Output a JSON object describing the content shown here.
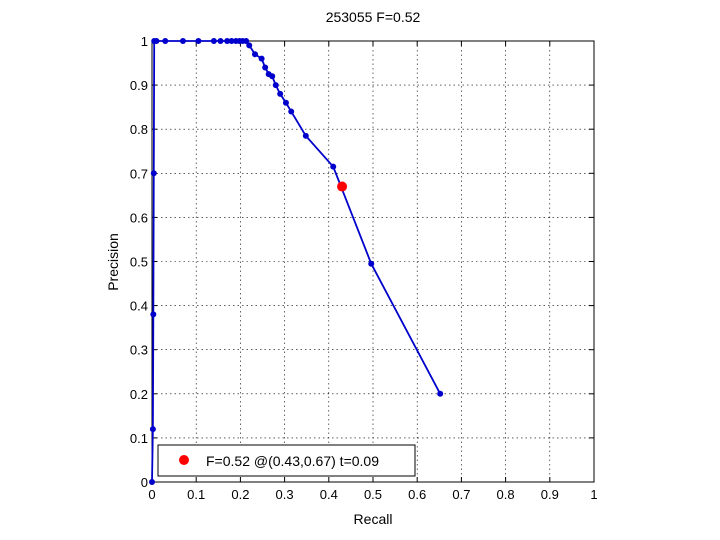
{
  "chart_data": {
    "type": "line",
    "title": "253055 F=0.52",
    "xlabel": "Recall",
    "ylabel": "Precision",
    "xlim": [
      0,
      1
    ],
    "ylim": [
      0,
      1
    ],
    "xticks": [
      "0",
      "0.1",
      "0.2",
      "0.3",
      "0.4",
      "0.5",
      "0.6",
      "0.7",
      "0.8",
      "0.9",
      "1"
    ],
    "yticks": [
      "0",
      "0.1",
      "0.2",
      "0.3",
      "0.4",
      "0.5",
      "0.6",
      "0.7",
      "0.8",
      "0.9",
      "1"
    ],
    "grid": true,
    "legend_position": "bottom-left",
    "series": [
      {
        "color": "#0000cc",
        "points": [
          [
            0.0,
            0.0
          ],
          [
            0.002,
            0.12
          ],
          [
            0.003,
            0.38
          ],
          [
            0.004,
            0.7
          ],
          [
            0.005,
            1.0
          ],
          [
            0.01,
            1.0
          ],
          [
            0.03,
            1.0
          ],
          [
            0.07,
            1.0
          ],
          [
            0.105,
            1.0
          ],
          [
            0.14,
            1.0
          ],
          [
            0.155,
            1.0
          ],
          [
            0.17,
            1.0
          ],
          [
            0.18,
            1.0
          ],
          [
            0.19,
            1.0
          ],
          [
            0.198,
            1.0
          ],
          [
            0.205,
            1.0
          ],
          [
            0.213,
            1.0
          ],
          [
            0.22,
            0.99
          ],
          [
            0.233,
            0.97
          ],
          [
            0.248,
            0.96
          ],
          [
            0.256,
            0.94
          ],
          [
            0.264,
            0.925
          ],
          [
            0.272,
            0.92
          ],
          [
            0.28,
            0.9
          ],
          [
            0.29,
            0.88
          ],
          [
            0.303,
            0.86
          ],
          [
            0.315,
            0.84
          ],
          [
            0.348,
            0.785
          ],
          [
            0.41,
            0.715
          ],
          [
            0.496,
            0.495
          ],
          [
            0.652,
            0.2
          ]
        ]
      }
    ],
    "highlight_point": {
      "x": 0.43,
      "y": 0.67,
      "color": "#ff0000"
    },
    "legend_text": "F=0.52 @(0.43,0.67) t=0.09"
  }
}
